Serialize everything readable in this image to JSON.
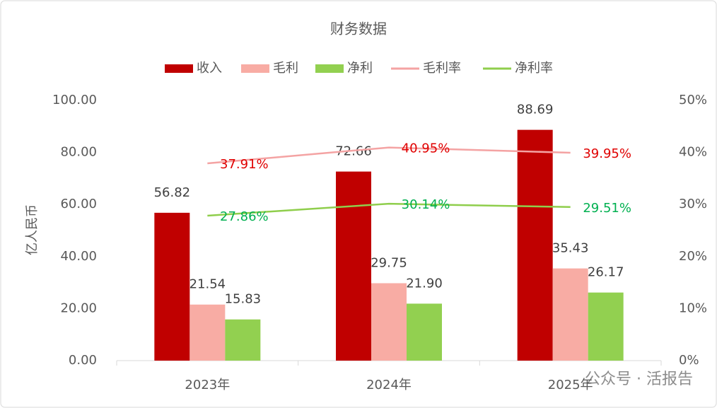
{
  "chart_data": {
    "type": "bar",
    "title": "财务数据",
    "y_label": "亿人民币",
    "categories": [
      "2023年",
      "2024年",
      "2025年"
    ],
    "series": [
      {
        "name": "收入",
        "type": "bar",
        "color": "#c00000",
        "label_color": "#404040",
        "values": [
          56.82,
          72.66,
          88.69
        ],
        "value_labels": [
          "56.82",
          "72.66",
          "88.69"
        ]
      },
      {
        "name": "毛利",
        "type": "bar",
        "color": "#f8aca4",
        "label_color": "#404040",
        "values": [
          21.54,
          29.75,
          35.43
        ],
        "value_labels": [
          "21.54",
          "29.75",
          "35.43"
        ]
      },
      {
        "name": "净利",
        "type": "bar",
        "color": "#92d050",
        "label_color": "#404040",
        "values": [
          15.83,
          21.9,
          26.17
        ],
        "value_labels": [
          "15.83",
          "21.90",
          "26.17"
        ]
      },
      {
        "name": "毛利率",
        "type": "line",
        "axis": "y2",
        "color": "#f4a3a3",
        "label_color": "#e00000",
        "values": [
          37.91,
          40.95,
          39.95
        ],
        "value_labels": [
          "37.91%",
          "40.95%",
          "39.95%"
        ]
      },
      {
        "name": "净利率",
        "type": "line",
        "axis": "y2",
        "color": "#8fce4c",
        "label_color": "#00b050",
        "values": [
          27.86,
          30.14,
          29.51
        ],
        "value_labels": [
          "27.86%",
          "30.14%",
          "29.51%"
        ]
      }
    ],
    "ylim": [
      0,
      100
    ],
    "yticks": [
      {
        "value": 0,
        "label": "0.00"
      },
      {
        "value": 20,
        "label": "20.00"
      },
      {
        "value": 40,
        "label": "40.00"
      },
      {
        "value": 60,
        "label": "60.00"
      },
      {
        "value": 80,
        "label": "80.00"
      },
      {
        "value": 100,
        "label": "100.00"
      }
    ],
    "y2lim": [
      0,
      50
    ],
    "y2ticks": [
      {
        "value": 0,
        "label": "0%"
      },
      {
        "value": 10,
        "label": "10%"
      },
      {
        "value": 20,
        "label": "20%"
      },
      {
        "value": 30,
        "label": "30%"
      },
      {
        "value": 40,
        "label": "40%"
      },
      {
        "value": 50,
        "label": "50%"
      }
    ],
    "grid": false,
    "legend": "top",
    "watermark": "公众号 · 活报告"
  }
}
